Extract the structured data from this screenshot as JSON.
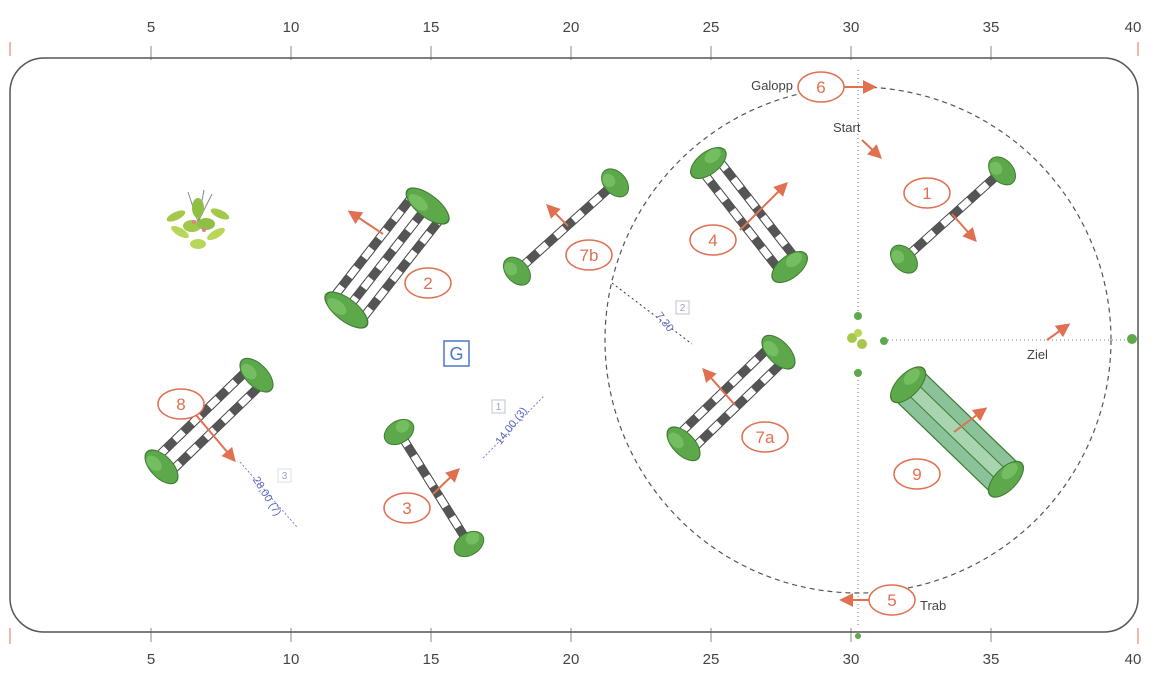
{
  "scale": {
    "ticks": [
      "5",
      "10",
      "15",
      "20",
      "25",
      "30",
      "35",
      "40"
    ]
  },
  "center_marker": "G",
  "obstacles": [
    {
      "label": "1"
    },
    {
      "label": "2"
    },
    {
      "label": "3"
    },
    {
      "label": "4"
    },
    {
      "label": "5"
    },
    {
      "label": "6"
    },
    {
      "label": "7a"
    },
    {
      "label": "7b"
    },
    {
      "label": "8"
    },
    {
      "label": "9"
    }
  ],
  "labels": {
    "galopp": "Galopp",
    "start": "Start",
    "ziel": "Ziel",
    "trab": "Trab"
  },
  "measurements": [
    {
      "box": "1",
      "text": "14,00 (3)"
    },
    {
      "box": "2",
      "text": "7,30"
    },
    {
      "box": "3",
      "text": "28,00 (7)"
    }
  ],
  "colors": {
    "arena_border": "#555555",
    "number": "#e07050",
    "pole_green": "#5ea84c",
    "measure_blue": "#5a68c4"
  }
}
